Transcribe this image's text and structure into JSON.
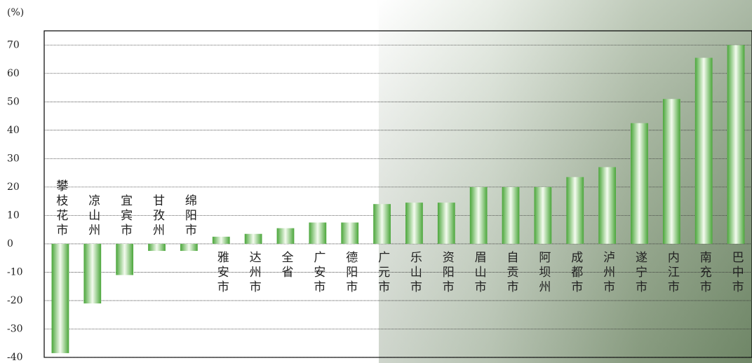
{
  "chart_data": {
    "type": "bar",
    "y_unit": "(%)",
    "categories": [
      "攀枝花市",
      "凉山州",
      "宜宾市",
      "甘孜州",
      "绵阳市",
      "雅安市",
      "达州市",
      "全省",
      "广安市",
      "德阳市",
      "广元市",
      "乐山市",
      "资阳市",
      "眉山市",
      "自贡市",
      "阿坝州",
      "成都市",
      "泸州市",
      "遂宁市",
      "内江市",
      "南充市",
      "巴中市"
    ],
    "values": [
      -38.5,
      -21,
      -11,
      -2.5,
      -2.5,
      2.5,
      3.5,
      5.5,
      7.5,
      7.5,
      14,
      14.5,
      14.5,
      20,
      20,
      20,
      23.5,
      27,
      42.5,
      51,
      65.5,
      70
    ],
    "color": "#4aa63a",
    "ylim": [
      -40,
      75
    ],
    "yticks": [
      -40,
      -30,
      -20,
      -10,
      0,
      10,
      20,
      30,
      40,
      50,
      60,
      70
    ],
    "grid": true
  }
}
